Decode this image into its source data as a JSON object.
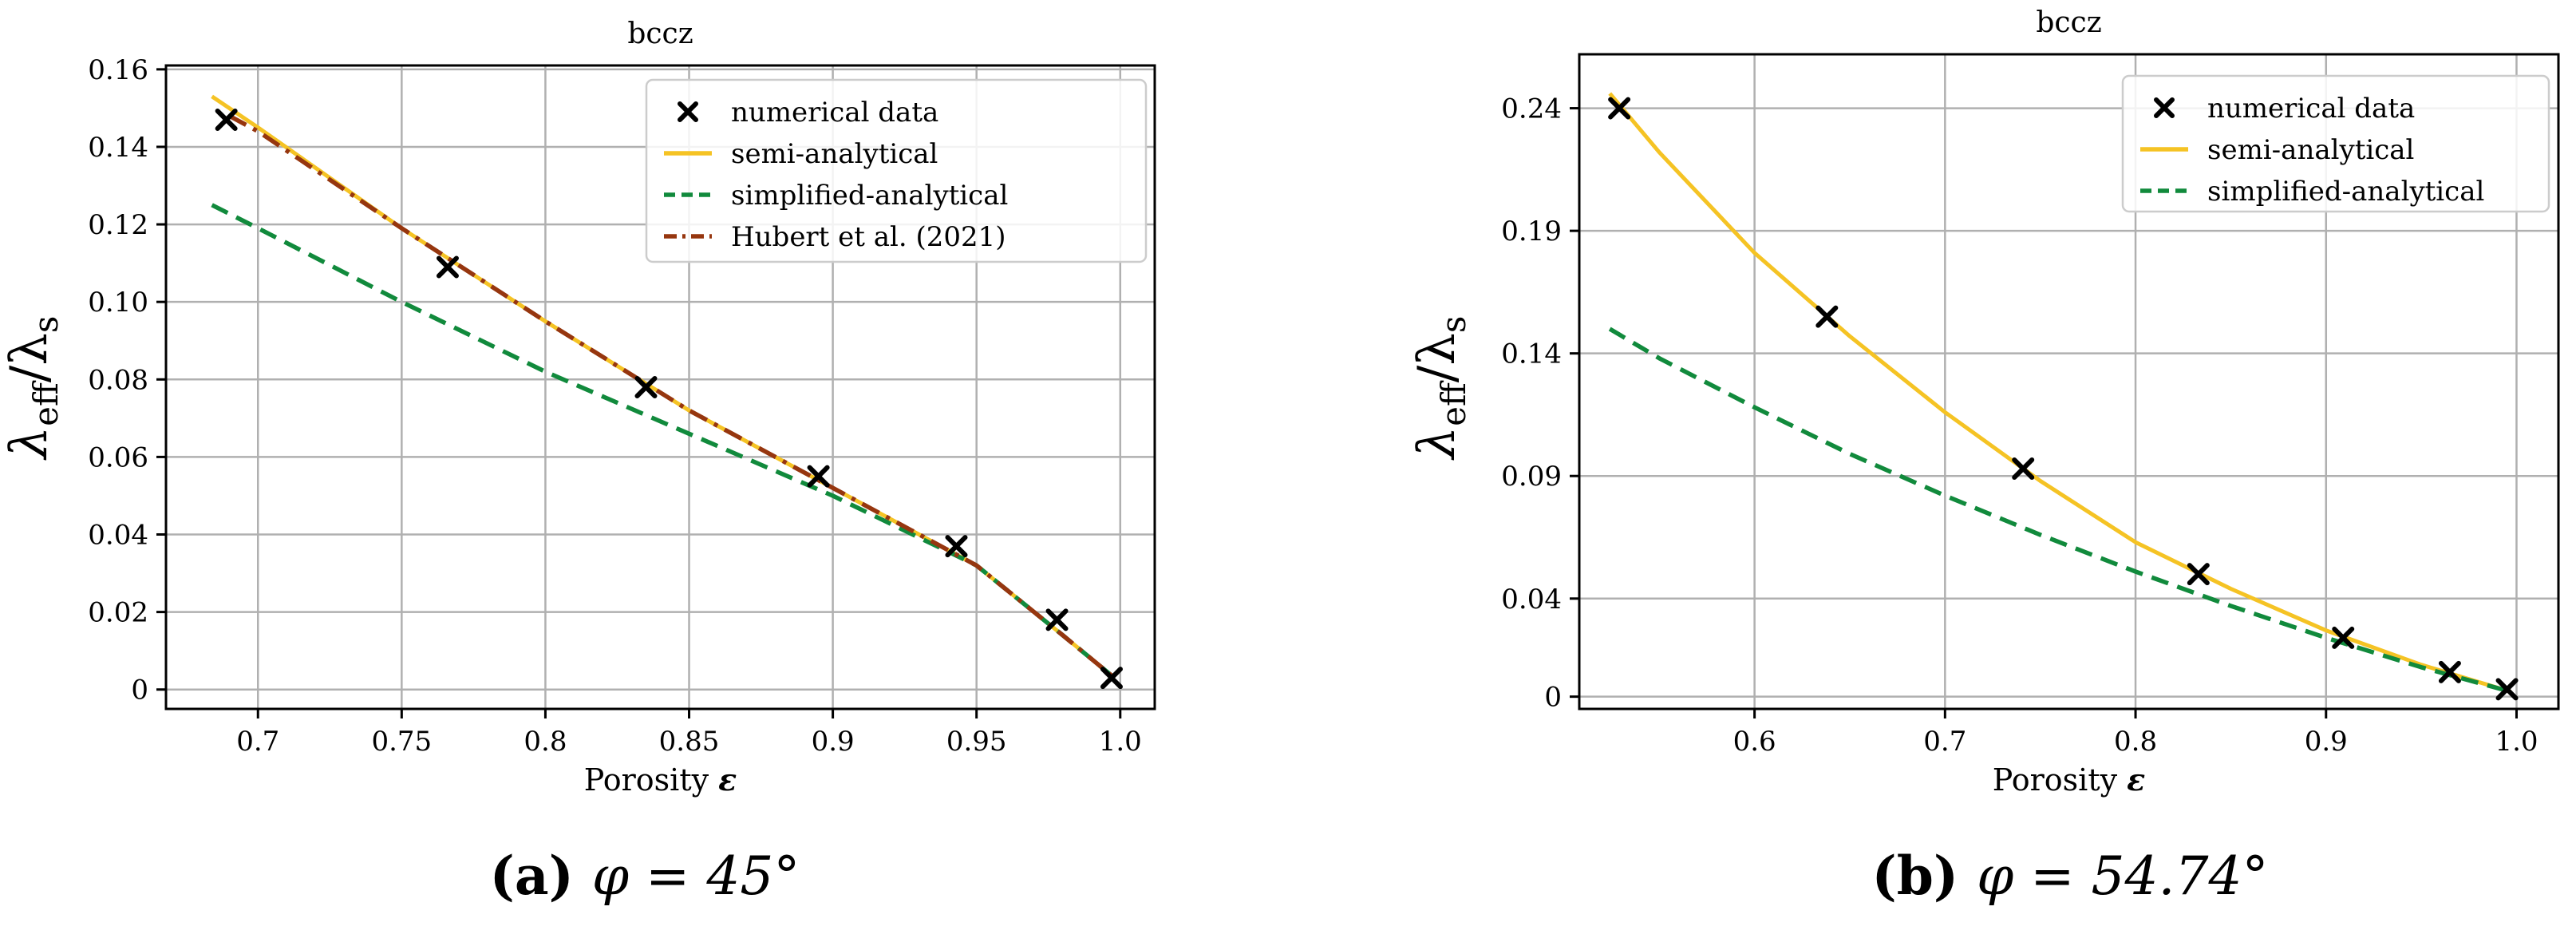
{
  "chart_data": [
    {
      "type": "line",
      "title": "bccz",
      "xlabel": "Porosity ε",
      "ylabel": "λ_eff/λ_s",
      "caption_label": "(a)",
      "caption_formula": "φ = 45°",
      "xlim": [
        0.668,
        1.012
      ],
      "ylim": [
        -0.005,
        0.161
      ],
      "xticks": [
        0.7,
        0.75,
        0.8,
        0.85,
        0.9,
        0.95,
        1.0
      ],
      "xtick_labels": [
        "0.7",
        "0.75",
        "0.8",
        "0.85",
        "0.9",
        "0.95",
        "1.0"
      ],
      "yticks": [
        0,
        0.02,
        0.04,
        0.06,
        0.08,
        0.1,
        0.12,
        0.14,
        0.16
      ],
      "ytick_labels": [
        "0",
        "0.02",
        "0.04",
        "0.06",
        "0.08",
        "0.10",
        "0.12",
        "0.14",
        "0.16"
      ],
      "grid": true,
      "legend_position": "top-right",
      "series": [
        {
          "name": "numerical data",
          "style": "marker-x",
          "color": "#000000",
          "x": [
            0.689,
            0.766,
            0.835,
            0.895,
            0.943,
            0.978,
            0.997
          ],
          "y": [
            0.147,
            0.109,
            0.078,
            0.055,
            0.037,
            0.018,
            0.003
          ]
        },
        {
          "name": "semi-analytical",
          "style": "solid",
          "color": "#f5c324",
          "x": [
            0.684,
            0.7,
            0.75,
            0.8,
            0.85,
            0.9,
            0.95,
            0.98,
            0.998
          ],
          "y": [
            0.153,
            0.145,
            0.119,
            0.095,
            0.072,
            0.052,
            0.032,
            0.014,
            0.003
          ]
        },
        {
          "name": "simplified-analytical",
          "style": "dashed",
          "color": "#118a3c",
          "x": [
            0.684,
            0.7,
            0.75,
            0.8,
            0.85,
            0.9,
            0.95,
            0.98,
            0.998
          ],
          "y": [
            0.125,
            0.119,
            0.1,
            0.082,
            0.066,
            0.05,
            0.032,
            0.014,
            0.003
          ]
        },
        {
          "name": "Hubert et al. (2021)",
          "style": "dashdot",
          "color": "#96360f",
          "x": [
            0.69,
            0.7,
            0.75,
            0.8,
            0.85,
            0.9,
            0.95,
            0.98,
            0.998
          ],
          "y": [
            0.148,
            0.144,
            0.119,
            0.095,
            0.072,
            0.052,
            0.032,
            0.014,
            0.003
          ]
        }
      ]
    },
    {
      "type": "line",
      "title": "bccz",
      "xlabel": "Porosity ε",
      "ylabel": "λ_eff/λ_s",
      "caption_label": "(b)",
      "caption_formula": "φ = 54.74°",
      "xlim": [
        0.508,
        1.022
      ],
      "ylim": [
        -0.005,
        0.262
      ],
      "xticks": [
        0.6,
        0.7,
        0.8,
        0.9,
        1.0
      ],
      "xtick_labels": [
        "0.6",
        "0.7",
        "0.8",
        "0.9",
        "1.0"
      ],
      "yticks": [
        0,
        0.04,
        0.09,
        0.14,
        0.19,
        0.24
      ],
      "ytick_labels": [
        "0",
        "0.04",
        "0.09",
        "0.14",
        "0.19",
        "0.24"
      ],
      "grid": true,
      "legend_position": "top-right",
      "series": [
        {
          "name": "numerical data",
          "style": "marker-x",
          "color": "#000000",
          "x": [
            0.529,
            0.638,
            0.741,
            0.833,
            0.909,
            0.965,
            0.995
          ],
          "y": [
            0.24,
            0.155,
            0.093,
            0.05,
            0.024,
            0.01,
            0.003
          ]
        },
        {
          "name": "semi-analytical",
          "style": "solid",
          "color": "#f5c324",
          "x": [
            0.524,
            0.55,
            0.6,
            0.65,
            0.7,
            0.75,
            0.8,
            0.85,
            0.9,
            0.95,
            0.997
          ],
          "y": [
            0.246,
            0.222,
            0.181,
            0.147,
            0.116,
            0.088,
            0.063,
            0.044,
            0.027,
            0.013,
            0.002
          ]
        },
        {
          "name": "simplified-analytical",
          "style": "dashed",
          "color": "#118a3c",
          "x": [
            0.524,
            0.55,
            0.6,
            0.65,
            0.7,
            0.75,
            0.8,
            0.85,
            0.9,
            0.95,
            0.997
          ],
          "y": [
            0.15,
            0.138,
            0.118,
            0.099,
            0.082,
            0.066,
            0.051,
            0.037,
            0.024,
            0.012,
            0.002
          ]
        }
      ]
    }
  ]
}
